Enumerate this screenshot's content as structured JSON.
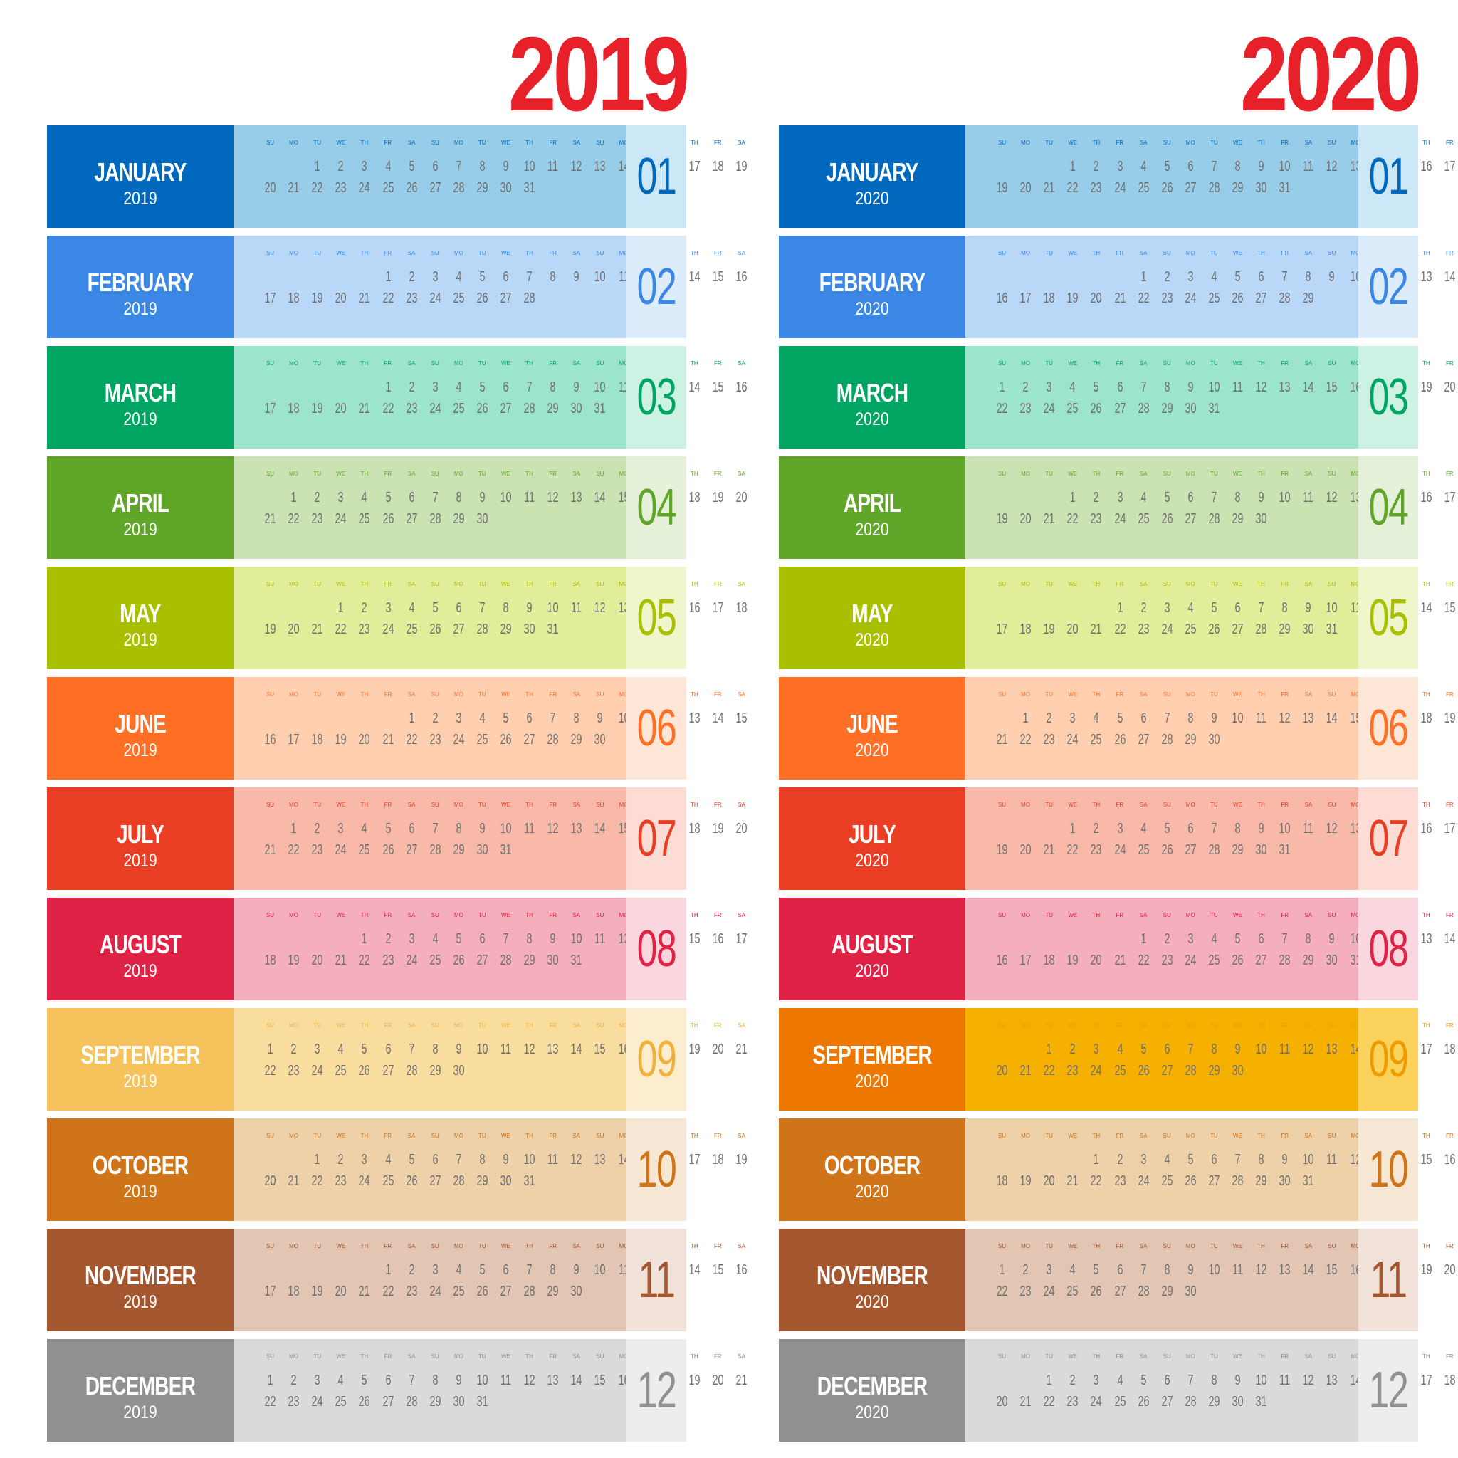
{
  "years": [
    {
      "year": "2019",
      "months": [
        {
          "name": "JANUARY",
          "year": "2019",
          "num": "01",
          "c": "#0069bd",
          "g": "#98cdea",
          "n": "#cce7f5",
          "t": "#0069bd",
          "start": 2,
          "days": 31
        },
        {
          "name": "FEBRUARY",
          "year": "2019",
          "num": "02",
          "c": "#3a87e6",
          "g": "#b9d8f8",
          "n": "#dcecfb",
          "t": "#3a87e6",
          "start": 5,
          "days": 28
        },
        {
          "name": "MARCH",
          "year": "2019",
          "num": "03",
          "c": "#00a562",
          "g": "#9ce4cb",
          "n": "#cdf2e4",
          "t": "#00a562",
          "start": 5,
          "days": 31
        },
        {
          "name": "APRIL",
          "year": "2019",
          "num": "04",
          "c": "#5fa629",
          "g": "#cbe3b3",
          "n": "#e5f1d9",
          "t": "#5fa629",
          "start": 1,
          "days": 30
        },
        {
          "name": "MAY",
          "year": "2019",
          "num": "05",
          "c": "#a9c000",
          "g": "#e2ed99",
          "n": "#f0f6cc",
          "t": "#a9c000",
          "start": 3,
          "days": 31
        },
        {
          "name": "JUNE",
          "year": "2019",
          "num": "06",
          "c": "#ff6f25",
          "g": "#ffcfaf",
          "n": "#ffe7d7",
          "t": "#ff6f25",
          "start": 6,
          "days": 30
        },
        {
          "name": "JULY",
          "year": "2019",
          "num": "07",
          "c": "#e93e24",
          "g": "#f8b9a9",
          "n": "#fcdcd4",
          "t": "#e93e24",
          "start": 1,
          "days": 31
        },
        {
          "name": "AUGUST",
          "year": "2019",
          "num": "08",
          "c": "#e02246",
          "g": "#f5afbc",
          "n": "#fad7de",
          "t": "#e02246",
          "start": 4,
          "days": 31
        },
        {
          "name": "SEPTEMBER",
          "year": "2019",
          "num": "09",
          "c": "#f5c25c",
          "g": "#f9dd9f",
          "n": "#fcedcf",
          "t": "#f0b13c",
          "start": 0,
          "days": 30
        },
        {
          "name": "OCTOBER",
          "year": "2019",
          "num": "10",
          "c": "#cf7418",
          "g": "#eed1a8",
          "n": "#f6e8d4",
          "t": "#cf7418",
          "start": 2,
          "days": 31
        },
        {
          "name": "NOVEMBER",
          "year": "2019",
          "num": "11",
          "c": "#a4562f",
          "g": "#e2c5b2",
          "n": "#f0e2d8",
          "t": "#a4562f",
          "start": 5,
          "days": 30
        },
        {
          "name": "DECEMBER",
          "year": "2019",
          "num": "12",
          "c": "#909090",
          "g": "#d9dadb",
          "n": "#ededed",
          "t": "#909090",
          "start": 0,
          "days": 31
        }
      ]
    },
    {
      "year": "2020",
      "months": [
        {
          "name": "JANUARY",
          "year": "2020",
          "num": "01",
          "c": "#0069bd",
          "g": "#98cdea",
          "n": "#cce7f5",
          "t": "#0069bd",
          "start": 3,
          "days": 31
        },
        {
          "name": "FEBRUARY",
          "year": "2020",
          "num": "02",
          "c": "#3a87e6",
          "g": "#b9d8f8",
          "n": "#dcecfb",
          "t": "#3a87e6",
          "start": 6,
          "days": 29
        },
        {
          "name": "MARCH",
          "year": "2020",
          "num": "03",
          "c": "#00a562",
          "g": "#9ce4cb",
          "n": "#cdf2e4",
          "t": "#00a562",
          "start": 0,
          "days": 31
        },
        {
          "name": "APRIL",
          "year": "2020",
          "num": "04",
          "c": "#5fa629",
          "g": "#cbe3b3",
          "n": "#e5f1d9",
          "t": "#5fa629",
          "start": 3,
          "days": 30
        },
        {
          "name": "MAY",
          "year": "2020",
          "num": "05",
          "c": "#a9c000",
          "g": "#e2ed99",
          "n": "#f0f6cc",
          "t": "#a9c000",
          "start": 5,
          "days": 31
        },
        {
          "name": "JUNE",
          "year": "2020",
          "num": "06",
          "c": "#ff6f25",
          "g": "#ffcfaf",
          "n": "#ffe7d7",
          "t": "#ff6f25",
          "start": 1,
          "days": 30
        },
        {
          "name": "JULY",
          "year": "2020",
          "num": "07",
          "c": "#e93e24",
          "g": "#f8b9a9",
          "n": "#fcdcd4",
          "t": "#e93e24",
          "start": 3,
          "days": 31
        },
        {
          "name": "AUGUST",
          "year": "2020",
          "num": "08",
          "c": "#e02246",
          "g": "#f5afbc",
          "n": "#fad7de",
          "t": "#e02246",
          "start": 6,
          "days": 31
        },
        {
          "name": "SEPTEMBER",
          "year": "2020",
          "num": "09",
          "c": "#ee7700",
          "g": "#f6b000",
          "n": "#fad25c",
          "t": "#ee9a00",
          "start": 2,
          "days": 30
        },
        {
          "name": "OCTOBER",
          "year": "2020",
          "num": "10",
          "c": "#cf7418",
          "g": "#eed1a8",
          "n": "#f6e8d4",
          "t": "#cf7418",
          "start": 4,
          "days": 31
        },
        {
          "name": "NOVEMBER",
          "year": "2020",
          "num": "11",
          "c": "#a4562f",
          "g": "#e2c5b2",
          "n": "#f0e2d8",
          "t": "#a4562f",
          "start": 0,
          "days": 30
        },
        {
          "name": "DECEMBER",
          "year": "2020",
          "num": "12",
          "c": "#909090",
          "g": "#d9dadb",
          "n": "#ededed",
          "t": "#909090",
          "start": 2,
          "days": 31
        }
      ]
    }
  ],
  "weekdays": [
    "SU",
    "MO",
    "TU",
    "WE",
    "TH",
    "FR",
    "SA"
  ]
}
